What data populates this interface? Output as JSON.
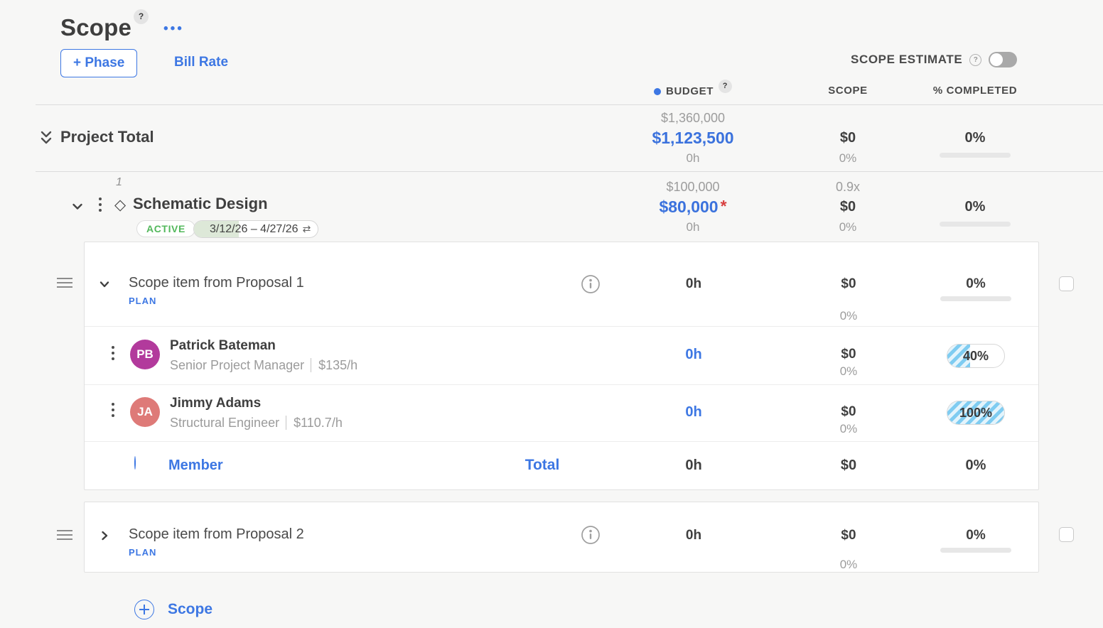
{
  "icons": {
    "help": "?",
    "more": "•••",
    "diamond": "◇",
    "refresh": "⇄"
  },
  "header": {
    "title": "Scope",
    "phase_button": "+ Phase",
    "bill_rate": "Bill Rate",
    "scope_estimate_label": "SCOPE ESTIMATE"
  },
  "columns": {
    "budget": "BUDGET",
    "scope": "SCOPE",
    "completed": "% COMPLETED"
  },
  "project_total": {
    "label": "Project Total",
    "budget": {
      "original": "$1,360,000",
      "current": "$1,123,500",
      "hours": "0h"
    },
    "scope": {
      "value": "$0",
      "pct": "0%"
    },
    "completed": {
      "pct": "0%",
      "progress": 0
    }
  },
  "phase": {
    "index": "1",
    "name": "Schematic Design",
    "status": "ACTIVE",
    "date_range": "3/12/26  –  4/27/26",
    "budget": {
      "original": "$100,000",
      "current": "$80,000",
      "flag": "*",
      "hours": "0h"
    },
    "scope": {
      "multiplier": "0.9x",
      "value": "$0",
      "pct": "0%"
    },
    "completed": {
      "pct": "0%",
      "progress": 0
    }
  },
  "scope_items": [
    {
      "name": "Scope item from Proposal 1",
      "tag": "PLAN",
      "hours": "0h",
      "scope": {
        "value": "$0",
        "pct": "0%"
      },
      "completed": {
        "pct": "0%",
        "progress": 0
      },
      "members": [
        {
          "initials": "PB",
          "avatar_color": "#b23a9c",
          "name": "Patrick Bateman",
          "role": "Senior Project Manager",
          "rate": "$135/h",
          "hours": "0h",
          "scope": {
            "value": "$0",
            "pct": "0%"
          },
          "completed": {
            "pct": "40%",
            "progress": 40
          }
        },
        {
          "initials": "JA",
          "avatar_color": "#de7a78",
          "name": "Jimmy Adams",
          "role": "Structural Engineer",
          "rate": "$110.7/h",
          "hours": "0h",
          "scope": {
            "value": "$0",
            "pct": "0%"
          },
          "completed": {
            "pct": "100%",
            "progress": 100
          }
        }
      ],
      "add_member_label": "Member",
      "total_label": "Total",
      "total": {
        "hours": "0h",
        "scope_value": "$0",
        "completed_pct": "0%"
      }
    },
    {
      "name": "Scope item from Proposal 2",
      "tag": "PLAN",
      "hours": "0h",
      "scope": {
        "value": "$0",
        "pct": "0%"
      },
      "completed": {
        "pct": "0%",
        "progress": 0
      }
    }
  ],
  "footer": {
    "add_scope_label": "Scope"
  },
  "colors": {
    "accent_blue": "#3d77e3",
    "active_green": "#53b85c",
    "flag_red": "#d84040",
    "stripe_blue": "#7fccf1"
  }
}
